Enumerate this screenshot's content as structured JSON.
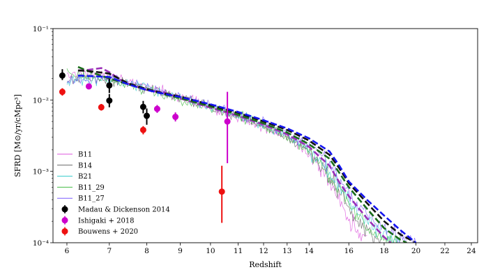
{
  "chart_data": {
    "type": "line",
    "title": "",
    "xlabel": "Redshift",
    "ylabel": "SFRD [M⊙/yr/cMpc³]",
    "xscale": "log(1+z)",
    "yscale": "log",
    "xlim": [
      5.7,
      24.5
    ],
    "ylim": [
      0.0001,
      0.1
    ],
    "grid": false,
    "legend_position": "lower-left",
    "x_ticks": [
      6,
      7,
      8,
      9,
      10,
      11,
      12,
      13,
      14,
      16,
      18,
      20,
      22,
      24
    ],
    "x_tick_labels": [
      "6",
      "7",
      "8",
      "9",
      "10",
      "11",
      "12",
      "13",
      "14",
      "16",
      "18",
      "20",
      "22",
      "24"
    ],
    "y_ticks": [
      0.0001,
      0.001,
      0.01,
      0.1
    ],
    "y_tick_labels": [
      "10⁻⁴",
      "10⁻³",
      "10⁻²",
      "10⁻¹"
    ],
    "noisy_series": [
      {
        "name": "B11",
        "color": "#dd55dd",
        "style": "solid-noisy",
        "x": [
          6.0,
          6.5,
          7.0,
          7.5,
          8.0,
          8.5,
          9.0,
          9.5,
          10.0,
          10.5,
          11.0,
          11.5,
          12.0,
          12.5,
          13.0,
          13.5,
          14.0,
          14.5,
          15.0,
          15.5,
          16.0,
          17.0
        ],
        "y": [
          0.022,
          0.024,
          0.022,
          0.018,
          0.015,
          0.013,
          0.011,
          0.0095,
          0.0078,
          0.0065,
          0.0056,
          0.0048,
          0.0041,
          0.0035,
          0.0029,
          0.0023,
          0.0017,
          0.0012,
          0.0007,
          0.0004,
          0.00022,
          0.0001
        ]
      },
      {
        "name": "B14",
        "color": "#666666",
        "style": "solid-noisy",
        "x": [
          6.0,
          6.5,
          7.0,
          7.5,
          8.0,
          8.5,
          9.0,
          9.5,
          10.0,
          10.5,
          11.0,
          11.5,
          12.0,
          12.5,
          13.0,
          13.5,
          14.0,
          14.5,
          15.0,
          15.5,
          16.0,
          17.0,
          17.8
        ],
        "y": [
          0.019,
          0.02,
          0.019,
          0.017,
          0.0145,
          0.0125,
          0.011,
          0.0095,
          0.0079,
          0.0067,
          0.0057,
          0.005,
          0.0043,
          0.0036,
          0.003,
          0.0024,
          0.0018,
          0.0013,
          0.0008,
          0.0005,
          0.0003,
          0.00015,
          0.0001
        ]
      },
      {
        "name": "B21",
        "color": "#33cccc",
        "style": "solid-noisy",
        "x": [
          6.0,
          6.5,
          7.0,
          7.5,
          8.0,
          8.5,
          9.0,
          9.5,
          10.0,
          10.5,
          11.0,
          11.5,
          12.0,
          12.5,
          13.0,
          13.5,
          14.0,
          14.5,
          15.0,
          15.5,
          16.0,
          17.0,
          18.0,
          19.0
        ],
        "y": [
          0.018,
          0.019,
          0.019,
          0.017,
          0.0145,
          0.0125,
          0.0108,
          0.0094,
          0.008,
          0.0069,
          0.006,
          0.0052,
          0.0045,
          0.0038,
          0.0032,
          0.0026,
          0.002,
          0.0015,
          0.001,
          0.0006,
          0.00038,
          0.0002,
          0.00012,
          0.0001
        ]
      },
      {
        "name": "B11_29",
        "color": "#44bb44",
        "style": "solid-noisy",
        "x": [
          6.0,
          6.5,
          7.0,
          7.5,
          8.0,
          8.5,
          9.0,
          9.5,
          10.0,
          10.5,
          11.0,
          11.5,
          12.0,
          12.5,
          13.0,
          13.5,
          14.0,
          14.5,
          15.0,
          15.5,
          16.0,
          17.0,
          18.0,
          19.0
        ],
        "y": [
          0.024,
          0.022,
          0.019,
          0.016,
          0.014,
          0.0122,
          0.0105,
          0.0092,
          0.0079,
          0.0068,
          0.0059,
          0.0051,
          0.0044,
          0.0037,
          0.0031,
          0.0025,
          0.0019,
          0.0014,
          0.0009,
          0.00055,
          0.00033,
          0.00017,
          0.00011,
          0.0001
        ]
      },
      {
        "name": "B11_27",
        "color": "#7b5cff",
        "style": "solid-noisy",
        "x": [
          6.0,
          6.5,
          7.0,
          7.5,
          8.0,
          8.5,
          9.0,
          9.5,
          10.0,
          10.5,
          11.0,
          11.5,
          12.0,
          12.5,
          13.0,
          13.5,
          14.0,
          14.5,
          15.0,
          15.5,
          16.0,
          17.0,
          18.0,
          19.0,
          20.0
        ],
        "y": [
          0.018,
          0.02,
          0.02,
          0.018,
          0.015,
          0.013,
          0.011,
          0.0097,
          0.0083,
          0.0071,
          0.0062,
          0.0054,
          0.0047,
          0.004,
          0.0034,
          0.0028,
          0.0022,
          0.0017,
          0.0012,
          0.00075,
          0.00045,
          0.00025,
          0.00016,
          0.00012,
          0.0001
        ]
      }
    ],
    "fit_series": [
      {
        "color": "#9b30b8",
        "style": "dashed",
        "x": [
          6.25,
          6.5,
          6.8,
          7.0,
          7.3,
          7.6,
          8.0,
          8.5,
          9.0,
          10.0,
          11.0,
          12.0,
          13.0,
          14.0,
          15.0,
          15.5,
          16.0,
          17.0,
          18.0,
          18.4
        ],
        "y": [
          0.026,
          0.0265,
          0.028,
          0.0245,
          0.019,
          0.016,
          0.0138,
          0.0128,
          0.0105,
          0.0078,
          0.006,
          0.0045,
          0.0033,
          0.0022,
          0.0012,
          0.0007,
          0.00045,
          0.00022,
          0.00012,
          0.0001
        ]
      },
      {
        "color": "#1a6e1a",
        "style": "dashed",
        "x": [
          6.25,
          6.6,
          7.0,
          7.5,
          8.0,
          8.5,
          9.0,
          10.0,
          11.0,
          12.0,
          13.0,
          14.0,
          15.0,
          15.5,
          16.0,
          17.0,
          18.0,
          19.0,
          19.4
        ],
        "y": [
          0.029,
          0.024,
          0.02,
          0.0165,
          0.014,
          0.012,
          0.0106,
          0.0081,
          0.0062,
          0.0047,
          0.0035,
          0.0024,
          0.0015,
          0.00095,
          0.0006,
          0.0003,
          0.00016,
          0.00011,
          0.0001
        ]
      },
      {
        "color": "#111111",
        "style": "dashed",
        "x": [
          6.25,
          6.6,
          7.0,
          7.5,
          8.0,
          8.5,
          9.0,
          10.0,
          11.0,
          12.0,
          13.0,
          14.0,
          15.0,
          15.5,
          16.0,
          17.0,
          18.0,
          19.0,
          20.0
        ],
        "y": [
          0.026,
          0.025,
          0.0235,
          0.017,
          0.0142,
          0.0124,
          0.0112,
          0.0085,
          0.0066,
          0.005,
          0.0038,
          0.0027,
          0.0017,
          0.0011,
          0.00068,
          0.00036,
          0.0002,
          0.00013,
          0.0001
        ]
      },
      {
        "color": "#1515ee",
        "style": "dashed",
        "x": [
          6.25,
          6.6,
          7.0,
          7.5,
          8.0,
          8.5,
          9.0,
          10.0,
          11.0,
          12.0,
          13.0,
          14.0,
          15.0,
          15.5,
          16.0,
          17.0,
          18.0,
          19.0,
          20.0
        ],
        "y": [
          0.022,
          0.0215,
          0.021,
          0.0165,
          0.0138,
          0.0122,
          0.011,
          0.0087,
          0.0068,
          0.0052,
          0.004,
          0.0029,
          0.0019,
          0.0012,
          0.00072,
          0.0004,
          0.00024,
          0.00015,
          0.0001
        ]
      }
    ],
    "observations": [
      {
        "name": "Madau & Dickenson 2014",
        "color": "#000000",
        "points": [
          {
            "x": 5.9,
            "y": 0.022,
            "ylo": 0.019,
            "yhi": 0.027
          },
          {
            "x": 7.0,
            "y": 0.016,
            "ylo": 0.0125,
            "yhi": 0.02
          },
          {
            "x": 7.0,
            "y": 0.0098,
            "ylo": 0.0079,
            "yhi": 0.0121
          },
          {
            "x": 7.9,
            "y": 0.008,
            "ylo": 0.0065,
            "yhi": 0.0097
          },
          {
            "x": 8.0,
            "y": 0.006,
            "ylo": 0.0045,
            "yhi": 0.0076
          }
        ]
      },
      {
        "name": "Ishigaki + 2018",
        "color": "#cc00cc",
        "points": [
          {
            "x": 6.5,
            "y": 0.0155,
            "ylo": 0.0142,
            "yhi": 0.0168
          },
          {
            "x": 8.3,
            "y": 0.0075,
            "ylo": 0.0066,
            "yhi": 0.0085
          },
          {
            "x": 8.85,
            "y": 0.0058,
            "ylo": 0.005,
            "yhi": 0.0067
          },
          {
            "x": 10.6,
            "y": 0.005,
            "ylo": 0.0013,
            "yhi": 0.013
          }
        ]
      },
      {
        "name": "Bouwens + 2020",
        "color": "#ee1111",
        "points": [
          {
            "x": 5.9,
            "y": 0.013,
            "ylo": 0.0115,
            "yhi": 0.0146
          },
          {
            "x": 6.8,
            "y": 0.0079,
            "ylo": 0.0071,
            "yhi": 0.0088
          },
          {
            "x": 7.9,
            "y": 0.0038,
            "ylo": 0.0033,
            "yhi": 0.0043
          },
          {
            "x": 10.4,
            "y": 0.00052,
            "ylo": 0.00019,
            "yhi": 0.0012
          }
        ]
      }
    ],
    "legend": [
      {
        "label": "B11",
        "kind": "line",
        "color": "#dd55dd"
      },
      {
        "label": "B14",
        "kind": "line",
        "color": "#666666"
      },
      {
        "label": "B21",
        "kind": "line",
        "color": "#33cccc"
      },
      {
        "label": "B11_29",
        "kind": "line",
        "color": "#44bb44"
      },
      {
        "label": "B11_27",
        "kind": "line",
        "color": "#7b5cff"
      },
      {
        "label": "Madau & Dickenson 2014",
        "kind": "marker",
        "color": "#000000"
      },
      {
        "label": "Ishigaki + 2018",
        "kind": "marker",
        "color": "#cc00cc"
      },
      {
        "label": "Bouwens + 2020",
        "kind": "marker",
        "color": "#ee1111"
      }
    ]
  }
}
